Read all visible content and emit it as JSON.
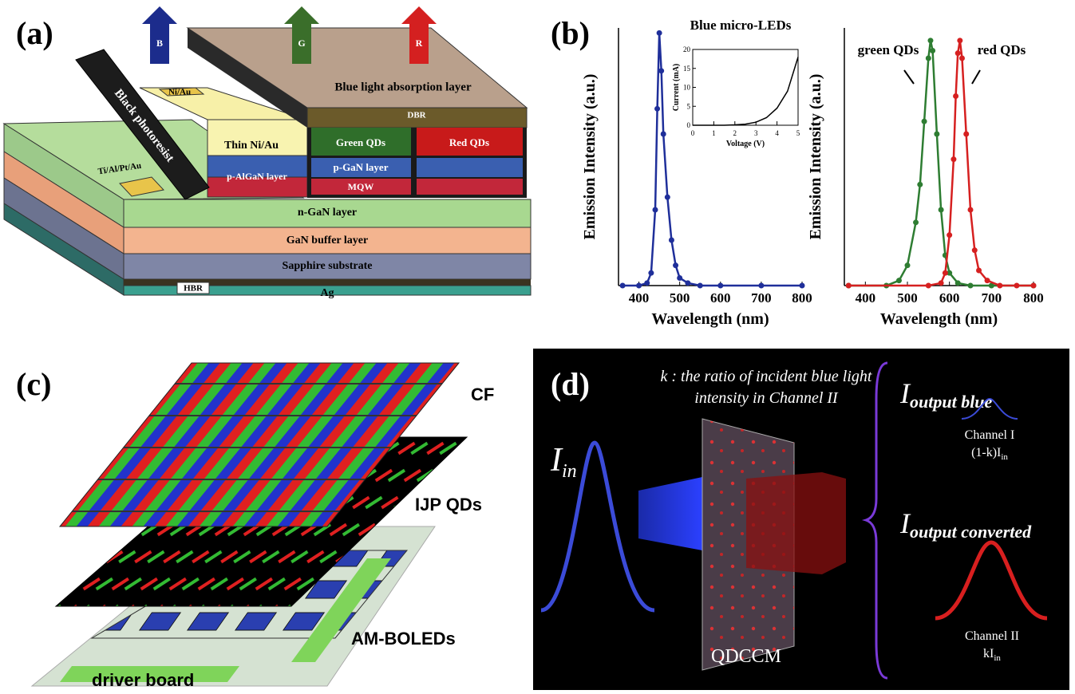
{
  "panel_a": {
    "label": "(a)",
    "arrows": [
      "B",
      "G",
      "R"
    ],
    "top_layer": "Blue light absorption layer",
    "dbr": "DBR",
    "photoresist": "Black photoresist",
    "ni_au": "Ni/Au",
    "thin_ni_au": "Thin Ni/Au",
    "green_qds": "Green QDs",
    "red_qds": "Red QDs",
    "p_gan": "p-GaN layer",
    "mqw": "MQW",
    "p_algan": "p-AlGaN layer",
    "contact": "Ti/Al/Pt/Au",
    "n_gan": "n-GaN layer",
    "buffer": "GaN buffer layer",
    "substrate": "Sapphire substrate",
    "hbr": "HBR",
    "ag": "Ag"
  },
  "panel_b": {
    "label": "(b)"
  },
  "chart_data": [
    {
      "type": "line",
      "title": "Blue micro-LEDs",
      "x_label": "Wavelength (nm)",
      "y_label": "Emission Intensity (a.u.)",
      "xlim": [
        350,
        800
      ],
      "ylim": [
        0,
        1.02
      ],
      "xticks": [
        400,
        500,
        600,
        700,
        800
      ],
      "markers": true,
      "series": [
        {
          "color": "#1f2f9a",
          "x": [
            360,
            400,
            420,
            430,
            440,
            445,
            450,
            455,
            460,
            470,
            480,
            490,
            500,
            520,
            550,
            600,
            700,
            800
          ],
          "values": [
            0,
            0,
            0.01,
            0.05,
            0.3,
            0.7,
            1.0,
            0.85,
            0.6,
            0.35,
            0.18,
            0.08,
            0.03,
            0.01,
            0,
            0,
            0,
            0
          ]
        }
      ]
    },
    {
      "type": "line",
      "x_label": "Voltage (V)",
      "y_label": "Current (mA)",
      "xlim": [
        0,
        5
      ],
      "ylim": [
        0,
        20
      ],
      "xticks": [
        0,
        1,
        2,
        3,
        4,
        5
      ],
      "yticks": [
        0,
        5,
        10,
        15,
        20
      ],
      "markers": false,
      "series": [
        {
          "color": "#000000",
          "x": [
            0,
            0.5,
            1,
            1.5,
            2,
            2.5,
            3,
            3.5,
            4,
            4.5,
            5
          ],
          "values": [
            0,
            0,
            0,
            0,
            0.1,
            0.3,
            0.8,
            2,
            4.5,
            9,
            18
          ]
        }
      ]
    },
    {
      "type": "line",
      "x_label": "Wavelength (nm)",
      "y_label": "Emission Intensity (a.u.)",
      "xlim": [
        350,
        800
      ],
      "ylim": [
        0,
        1.02
      ],
      "xticks": [
        400,
        500,
        600,
        700,
        800
      ],
      "markers": true,
      "series": [
        {
          "name": "green QDs",
          "color": "#2e7d32",
          "x": [
            360,
            450,
            480,
            500,
            520,
            530,
            540,
            550,
            555,
            560,
            570,
            580,
            590,
            600,
            620,
            650,
            700,
            800
          ],
          "values": [
            0,
            0,
            0.02,
            0.08,
            0.25,
            0.4,
            0.65,
            0.9,
            0.97,
            0.93,
            0.6,
            0.3,
            0.12,
            0.05,
            0.01,
            0,
            0,
            0
          ]
        },
        {
          "name": "red QDs",
          "color": "#d62020",
          "x": [
            360,
            550,
            580,
            590,
            600,
            610,
            615,
            620,
            625,
            630,
            640,
            650,
            660,
            670,
            690,
            720,
            760,
            800
          ],
          "values": [
            0,
            0,
            0.01,
            0.05,
            0.2,
            0.5,
            0.75,
            0.92,
            0.97,
            0.9,
            0.6,
            0.3,
            0.14,
            0.06,
            0.02,
            0,
            0,
            0
          ]
        }
      ]
    }
  ],
  "panel_c": {
    "label": "(c)",
    "layers": [
      "CF",
      "IJP QDs",
      "AM-BOLEDs",
      "driver board"
    ]
  },
  "panel_d": {
    "label": "(d)",
    "note": [
      "k : the ratio of incident blue light",
      "intensity in Channel II"
    ],
    "input": {
      "symbol": "I",
      "subscript": "in"
    },
    "output_blue": {
      "symbol": "I",
      "subscript": "output blue"
    },
    "channel_1": "Channel I",
    "channel_1_value": {
      "prefix": "(1-k)I",
      "subscript": "in"
    },
    "output_converted": {
      "symbol": "I",
      "subscript": "output converted"
    },
    "channel_2": "Channel II",
    "channel_2_value": {
      "prefix": "kI",
      "subscript": "in"
    },
    "device": "QDCCM"
  }
}
